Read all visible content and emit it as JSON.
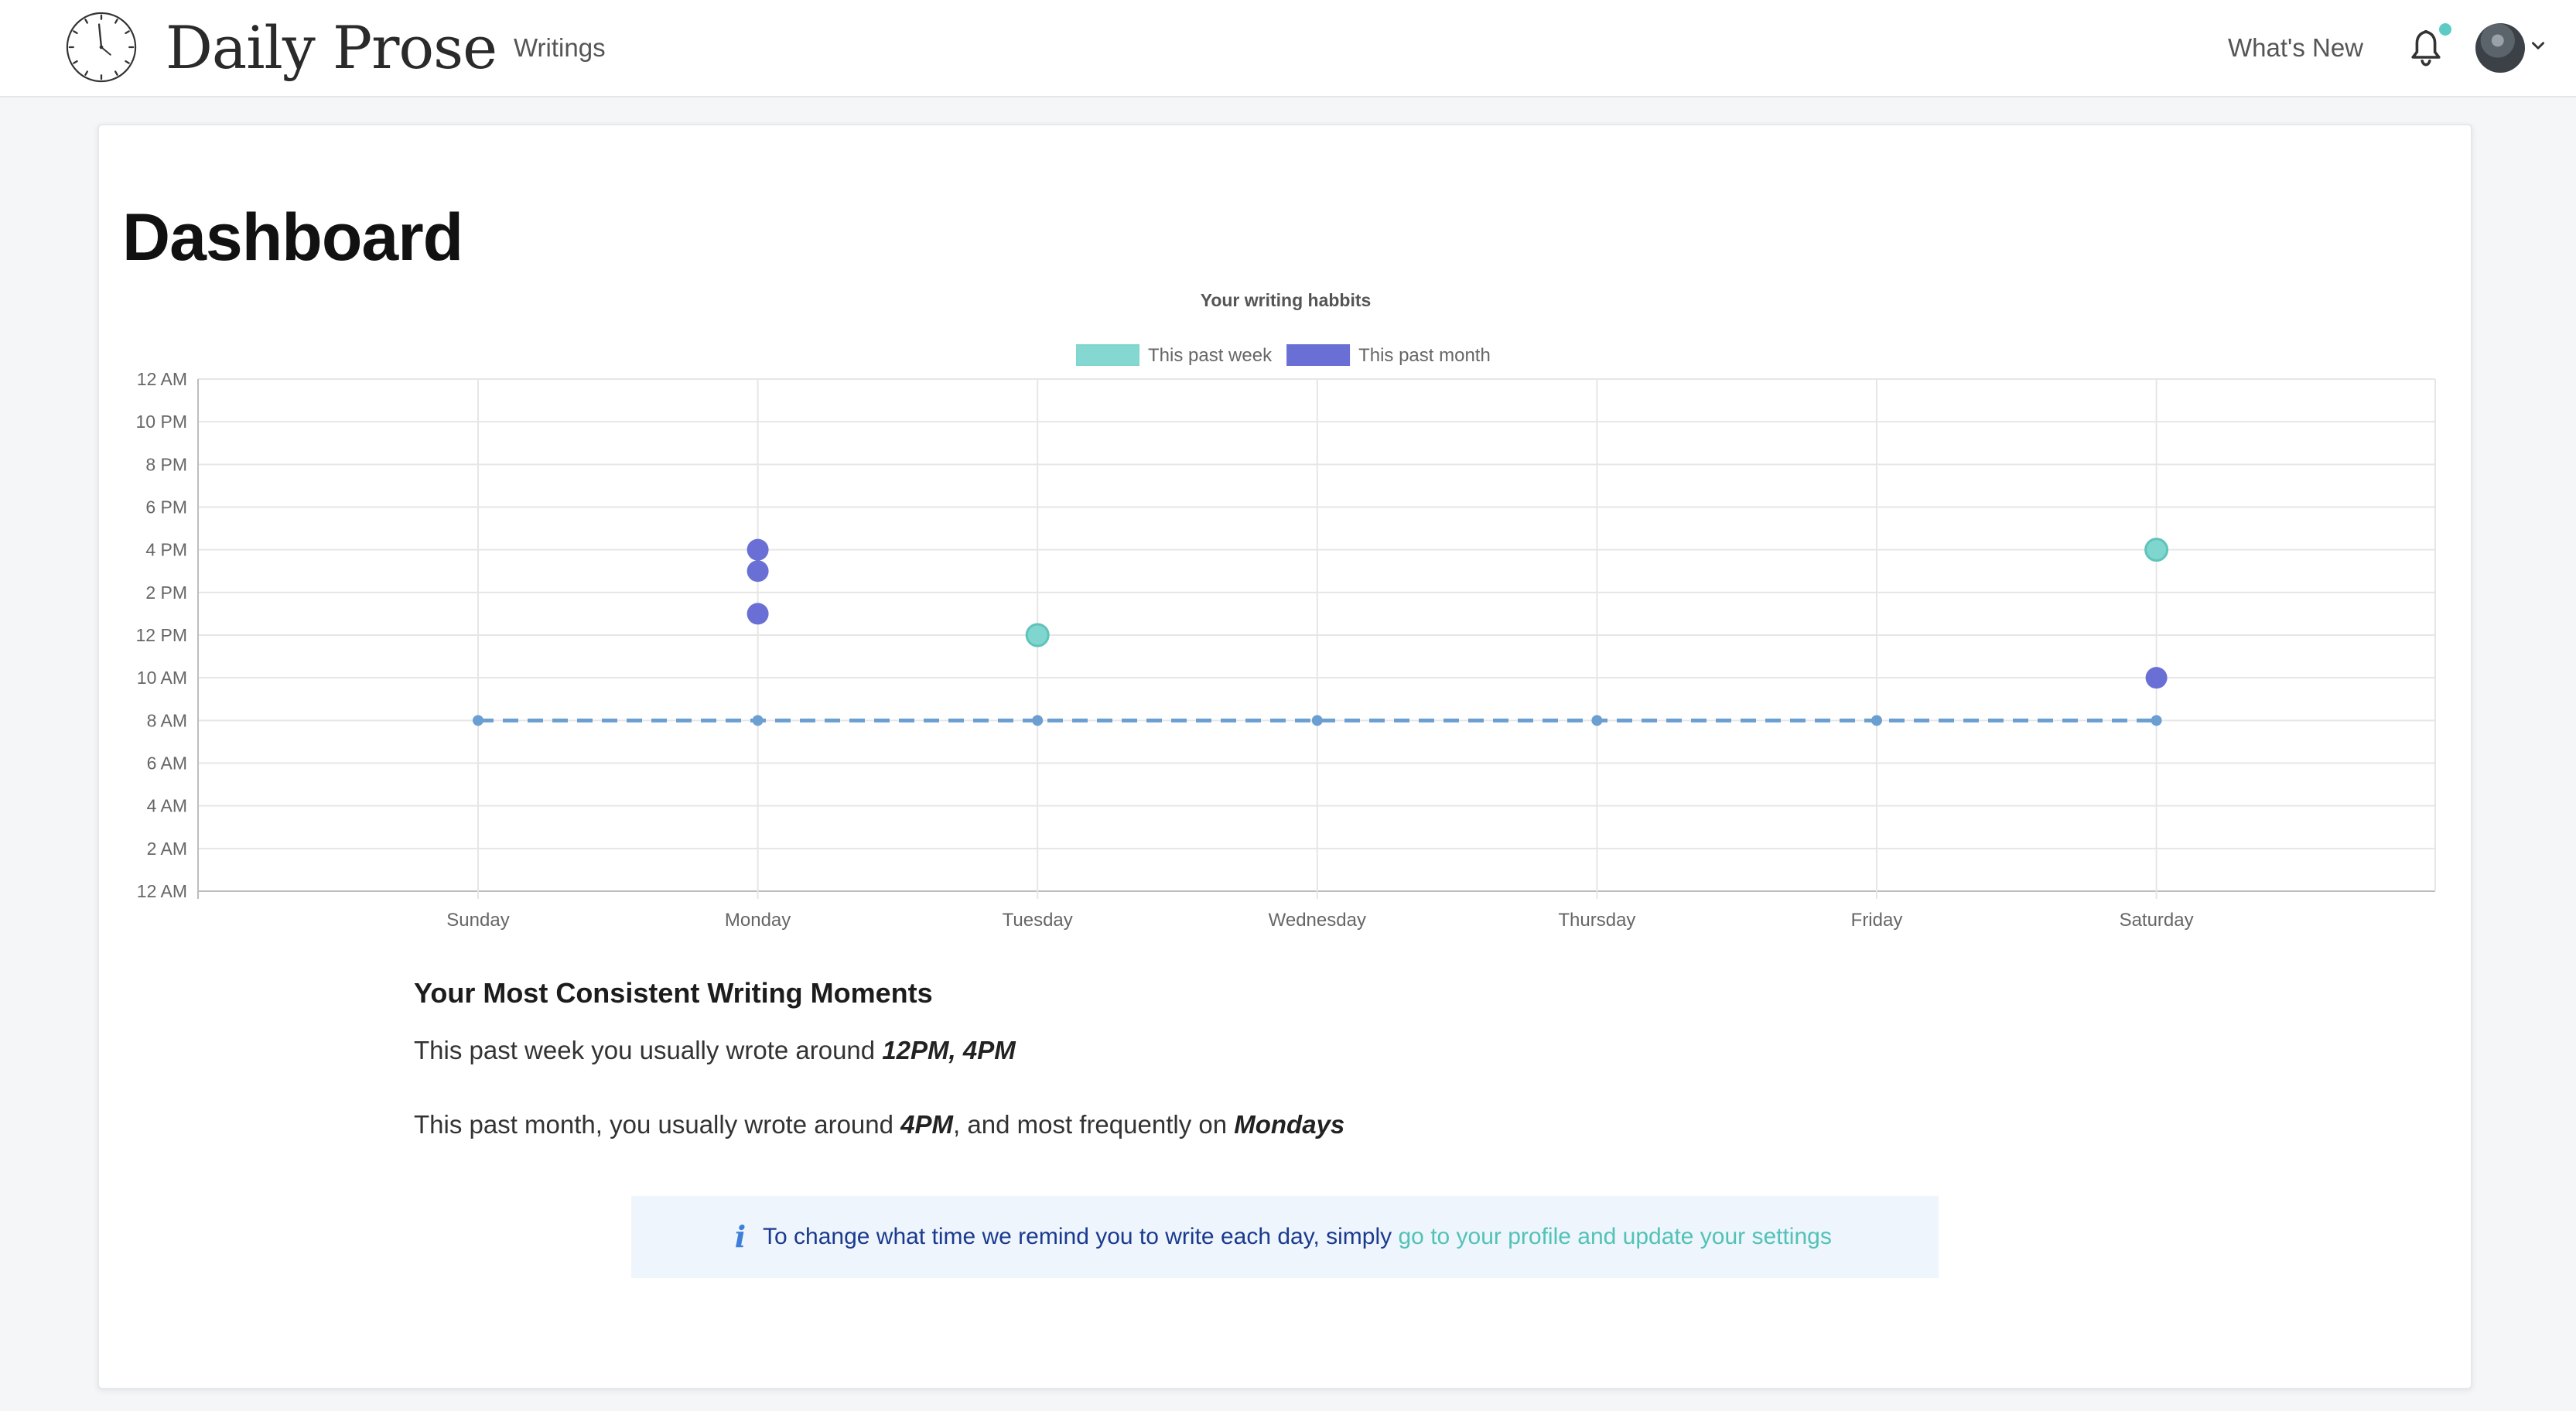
{
  "header": {
    "brand": "Daily Prose",
    "nav": {
      "writings": "Writings",
      "whats_new": "What's New"
    },
    "icons": {
      "logo": "clock-logo-icon",
      "notifications": "bell-icon",
      "account_caret": "chevron-down-icon"
    },
    "notification_dot_color": "#5ccbc3"
  },
  "page": {
    "title": "Dashboard"
  },
  "chart_data": {
    "type": "scatter",
    "title": "Your writing habbits",
    "legend_position": "top",
    "categories": [
      "Sunday",
      "Monday",
      "Tuesday",
      "Wednesday",
      "Thursday",
      "Friday",
      "Saturday"
    ],
    "y_ticks": [
      "12 AM",
      "10 PM",
      "8 PM",
      "6 PM",
      "4 PM",
      "2 PM",
      "12 PM",
      "10 AM",
      "8 AM",
      "6 AM",
      "4 AM",
      "2 AM",
      "12 AM"
    ],
    "ylim": [
      0,
      24
    ],
    "grid": true,
    "series": [
      {
        "name": "This past week",
        "color": "#7ed6cf",
        "points": [
          {
            "x": "Tuesday",
            "y": 12
          },
          {
            "x": "Saturday",
            "y": 16
          }
        ]
      },
      {
        "name": "This past month",
        "color": "#6a6fd6",
        "points": [
          {
            "x": "Monday",
            "y": 16
          },
          {
            "x": "Monday",
            "y": 15
          },
          {
            "x": "Monday",
            "y": 13
          },
          {
            "x": "Saturday",
            "y": 10
          }
        ]
      }
    ],
    "reminder_line": {
      "y": 8,
      "color": "#6b9fd1",
      "style": "dashed",
      "days": [
        "Sunday",
        "Monday",
        "Tuesday",
        "Wednesday",
        "Thursday",
        "Friday",
        "Saturday"
      ]
    }
  },
  "summary": {
    "title": "Your Most Consistent Writing Moments",
    "week_prefix": "This past week you usually wrote around ",
    "week_times": "12PM, 4PM",
    "month_prefix": "This past month, you usually wrote around ",
    "month_time": "4PM",
    "month_mid": ", and most frequently on ",
    "month_day": "Mondays"
  },
  "notice": {
    "icon": "info-icon",
    "icon_glyph": "i",
    "text": "To change what time we remind you to write each day, simply ",
    "link": "go to your profile and update your settings"
  }
}
